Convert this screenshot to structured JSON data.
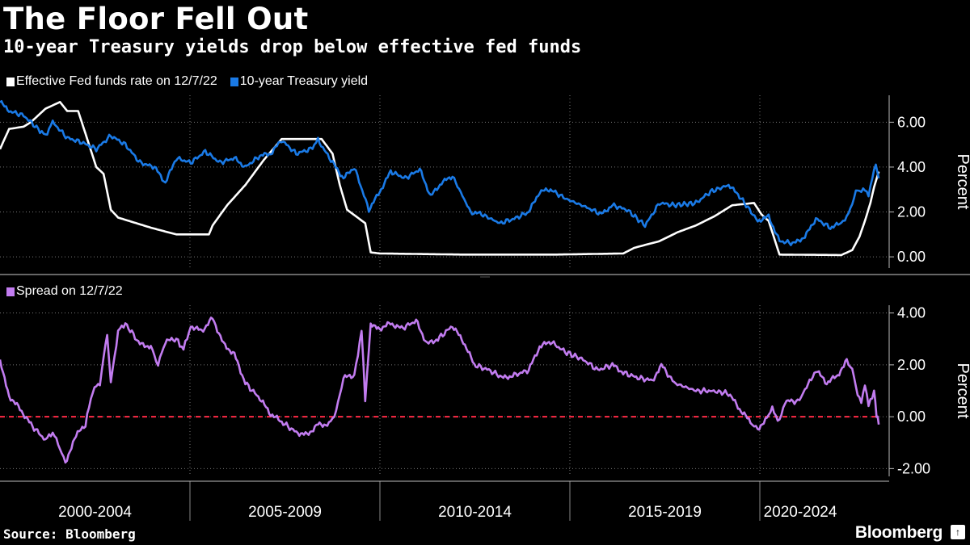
{
  "title": "The Floor Fell Out",
  "subtitle": "10-year Treasury yields drop below effective fed funds",
  "source": "Source: Bloomberg",
  "brand": "Bloomberg",
  "brand_badge": "↑",
  "colors": {
    "background": "#000000",
    "fed_funds": "#ffffff",
    "treasury": "#1a7ae6",
    "spread": "#c27cf0",
    "zero_line": "#ff2a44",
    "grid": "#666666"
  },
  "chart_data": [
    {
      "type": "line",
      "title": "10-year Treasury yields drop below effective fed funds",
      "ylabel": "Percent",
      "ylim": [
        -0.5,
        7.2
      ],
      "yticks": [
        0,
        2,
        4,
        6
      ],
      "ytick_labels": [
        "0.00",
        "2.00",
        "4.00",
        "6.00"
      ],
      "xlim": [
        1998.75,
        2022.95
      ],
      "legend": "top-left",
      "series": [
        {
          "name": "Effective Fed funds rate on 12/7/22",
          "color": "#ffffff",
          "points": [
            [
              1998.75,
              4.8
            ],
            [
              1999.0,
              5.7
            ],
            [
              1999.4,
              5.8
            ],
            [
              1999.6,
              6.0
            ],
            [
              2000.0,
              6.6
            ],
            [
              2000.4,
              6.9
            ],
            [
              2000.6,
              6.5
            ],
            [
              2000.9,
              6.5
            ],
            [
              2001.1,
              5.5
            ],
            [
              2001.4,
              4.0
            ],
            [
              2001.6,
              3.7
            ],
            [
              2001.8,
              2.1
            ],
            [
              2002.0,
              1.75
            ],
            [
              2002.9,
              1.3
            ],
            [
              2003.6,
              1.0
            ],
            [
              2004.5,
              1.0
            ],
            [
              2004.6,
              1.4
            ],
            [
              2005.0,
              2.3
            ],
            [
              2005.5,
              3.2
            ],
            [
              2006.0,
              4.3
            ],
            [
              2006.5,
              5.25
            ],
            [
              2007.6,
              5.25
            ],
            [
              2007.9,
              4.6
            ],
            [
              2008.1,
              3.2
            ],
            [
              2008.3,
              2.1
            ],
            [
              2008.8,
              1.5
            ],
            [
              2008.95,
              0.2
            ],
            [
              2009.2,
              0.15
            ],
            [
              2011.5,
              0.1
            ],
            [
              2014.0,
              0.1
            ],
            [
              2015.9,
              0.15
            ],
            [
              2016.2,
              0.4
            ],
            [
              2016.9,
              0.7
            ],
            [
              2017.4,
              1.1
            ],
            [
              2017.9,
              1.4
            ],
            [
              2018.4,
              1.8
            ],
            [
              2018.9,
              2.3
            ],
            [
              2019.5,
              2.4
            ],
            [
              2019.7,
              1.9
            ],
            [
              2019.9,
              1.6
            ],
            [
              2020.2,
              0.1
            ],
            [
              2021.9,
              0.08
            ],
            [
              2022.2,
              0.3
            ],
            [
              2022.4,
              0.9
            ],
            [
              2022.55,
              1.6
            ],
            [
              2022.7,
              2.4
            ],
            [
              2022.8,
              3.1
            ],
            [
              2022.93,
              3.8
            ]
          ]
        },
        {
          "name": "10-year Treasury yield",
          "color": "#1a7ae6",
          "points": [
            [
              1998.75,
              6.9
            ],
            [
              1999.0,
              6.5
            ],
            [
              1999.4,
              6.3
            ],
            [
              1999.8,
              5.7
            ],
            [
              2000.0,
              5.4
            ],
            [
              2000.2,
              6.0
            ],
            [
              2000.6,
              5.3
            ],
            [
              2001.0,
              5.1
            ],
            [
              2001.4,
              4.8
            ],
            [
              2001.8,
              5.4
            ],
            [
              2002.2,
              5.0
            ],
            [
              2002.6,
              4.2
            ],
            [
              2003.0,
              4.0
            ],
            [
              2003.3,
              3.3
            ],
            [
              2003.6,
              4.4
            ],
            [
              2004.0,
              4.2
            ],
            [
              2004.4,
              4.7
            ],
            [
              2004.8,
              4.2
            ],
            [
              2005.2,
              4.4
            ],
            [
              2005.5,
              4.0
            ],
            [
              2005.9,
              4.5
            ],
            [
              2006.2,
              4.6
            ],
            [
              2006.5,
              5.2
            ],
            [
              2006.9,
              4.6
            ],
            [
              2007.3,
              4.8
            ],
            [
              2007.5,
              5.2
            ],
            [
              2007.9,
              4.2
            ],
            [
              2008.2,
              3.5
            ],
            [
              2008.5,
              4.0
            ],
            [
              2008.9,
              2.1
            ],
            [
              2009.2,
              2.9
            ],
            [
              2009.5,
              3.8
            ],
            [
              2009.9,
              3.5
            ],
            [
              2010.3,
              3.9
            ],
            [
              2010.6,
              2.7
            ],
            [
              2010.9,
              3.3
            ],
            [
              2011.2,
              3.6
            ],
            [
              2011.7,
              2.0
            ],
            [
              2012.0,
              1.9
            ],
            [
              2012.5,
              1.5
            ],
            [
              2012.9,
              1.7
            ],
            [
              2013.3,
              2.0
            ],
            [
              2013.6,
              2.9
            ],
            [
              2013.9,
              3.0
            ],
            [
              2014.3,
              2.6
            ],
            [
              2014.9,
              2.2
            ],
            [
              2015.3,
              1.9
            ],
            [
              2015.6,
              2.3
            ],
            [
              2016.0,
              2.1
            ],
            [
              2016.5,
              1.4
            ],
            [
              2016.9,
              2.4
            ],
            [
              2017.3,
              2.3
            ],
            [
              2017.9,
              2.4
            ],
            [
              2018.3,
              2.9
            ],
            [
              2018.8,
              3.2
            ],
            [
              2019.1,
              2.7
            ],
            [
              2019.6,
              1.6
            ],
            [
              2019.9,
              1.8
            ],
            [
              2020.2,
              0.7
            ],
            [
              2020.6,
              0.6
            ],
            [
              2020.9,
              0.9
            ],
            [
              2021.2,
              1.7
            ],
            [
              2021.6,
              1.3
            ],
            [
              2021.9,
              1.5
            ],
            [
              2022.1,
              1.9
            ],
            [
              2022.3,
              2.9
            ],
            [
              2022.5,
              3.0
            ],
            [
              2022.65,
              2.8
            ],
            [
              2022.8,
              3.8
            ],
            [
              2022.85,
              4.2
            ],
            [
              2022.93,
              3.5
            ]
          ]
        }
      ]
    },
    {
      "type": "line",
      "title": "Spread on 12/7/22",
      "ylabel": "Percent",
      "ylim": [
        -2.3,
        4.3
      ],
      "yticks": [
        -2,
        0,
        2,
        4
      ],
      "ytick_labels": [
        "-2.00",
        "0.00",
        "2.00",
        "4.00"
      ],
      "xlim": [
        1998.75,
        2022.95
      ],
      "reference_line": 0,
      "legend": "top-left",
      "series": [
        {
          "name": "Spread on 12/7/22",
          "color": "#c27cf0",
          "points": [
            [
              1998.75,
              2.1
            ],
            [
              1999.0,
              0.8
            ],
            [
              1999.3,
              0.3
            ],
            [
              1999.6,
              -0.3
            ],
            [
              2000.0,
              -0.9
            ],
            [
              2000.2,
              -0.6
            ],
            [
              2000.4,
              -1.2
            ],
            [
              2000.55,
              -1.8
            ],
            [
              2000.8,
              -0.8
            ],
            [
              2001.1,
              -0.3
            ],
            [
              2001.3,
              1.0
            ],
            [
              2001.5,
              1.3
            ],
            [
              2001.7,
              3.2
            ],
            [
              2001.8,
              1.3
            ],
            [
              2002.0,
              3.3
            ],
            [
              2002.2,
              3.6
            ],
            [
              2002.6,
              2.8
            ],
            [
              2002.9,
              2.7
            ],
            [
              2003.1,
              2.0
            ],
            [
              2003.3,
              2.9
            ],
            [
              2003.6,
              3.0
            ],
            [
              2003.8,
              2.6
            ],
            [
              2004.0,
              3.5
            ],
            [
              2004.3,
              3.3
            ],
            [
              2004.6,
              3.8
            ],
            [
              2004.9,
              2.8
            ],
            [
              2005.2,
              2.4
            ],
            [
              2005.5,
              1.3
            ],
            [
              2005.9,
              0.7
            ],
            [
              2006.2,
              0.1
            ],
            [
              2006.5,
              -0.2
            ],
            [
              2006.9,
              -0.6
            ],
            [
              2007.2,
              -0.7
            ],
            [
              2007.5,
              -0.3
            ],
            [
              2007.8,
              -0.3
            ],
            [
              2008.0,
              0.2
            ],
            [
              2008.2,
              1.5
            ],
            [
              2008.5,
              1.6
            ],
            [
              2008.7,
              3.3
            ],
            [
              2008.8,
              0.7
            ],
            [
              2008.95,
              3.5
            ],
            [
              2009.2,
              3.4
            ],
            [
              2009.5,
              3.6
            ],
            [
              2009.8,
              3.4
            ],
            [
              2010.2,
              3.7
            ],
            [
              2010.5,
              2.8
            ],
            [
              2010.8,
              3.0
            ],
            [
              2011.2,
              3.5
            ],
            [
              2011.5,
              2.9
            ],
            [
              2011.8,
              2.0
            ],
            [
              2012.2,
              1.8
            ],
            [
              2012.6,
              1.5
            ],
            [
              2012.9,
              1.6
            ],
            [
              2013.3,
              1.8
            ],
            [
              2013.6,
              2.7
            ],
            [
              2013.9,
              2.9
            ],
            [
              2014.3,
              2.5
            ],
            [
              2014.8,
              2.2
            ],
            [
              2015.2,
              1.8
            ],
            [
              2015.6,
              2.0
            ],
            [
              2015.9,
              1.7
            ],
            [
              2016.3,
              1.5
            ],
            [
              2016.7,
              1.4
            ],
            [
              2016.95,
              2.0
            ],
            [
              2017.3,
              1.3
            ],
            [
              2017.9,
              1.0
            ],
            [
              2018.3,
              1.0
            ],
            [
              2018.8,
              0.9
            ],
            [
              2019.1,
              0.3
            ],
            [
              2019.4,
              -0.2
            ],
            [
              2019.6,
              -0.5
            ],
            [
              2019.85,
              0.0
            ],
            [
              2020.0,
              0.3
            ],
            [
              2020.2,
              -0.2
            ],
            [
              2020.35,
              0.6
            ],
            [
              2020.7,
              0.6
            ],
            [
              2020.9,
              1.0
            ],
            [
              2021.2,
              1.8
            ],
            [
              2021.5,
              1.3
            ],
            [
              2021.8,
              1.6
            ],
            [
              2022.05,
              2.2
            ],
            [
              2022.2,
              1.8
            ],
            [
              2022.35,
              0.9
            ],
            [
              2022.45,
              0.5
            ],
            [
              2022.55,
              1.3
            ],
            [
              2022.65,
              0.4
            ],
            [
              2022.8,
              1.0
            ],
            [
              2022.87,
              0.1
            ],
            [
              2022.93,
              -0.3
            ]
          ]
        }
      ]
    }
  ],
  "x_axis": {
    "period_labels": [
      "2000-2004",
      "2005-2009",
      "2010-2014",
      "2015-2019",
      "2020-2024"
    ]
  }
}
